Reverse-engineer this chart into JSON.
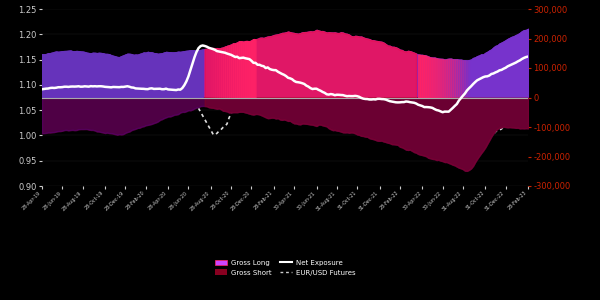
{
  "background_color": "#000000",
  "left_ylim": [
    0.9,
    1.25
  ],
  "right_ylim": [
    -300000,
    300000
  ],
  "left_yticks": [
    0.9,
    0.95,
    1.0,
    1.05,
    1.1,
    1.15,
    1.2,
    1.25
  ],
  "right_yticks": [
    -300000,
    -200000,
    -100000,
    0,
    100000,
    200000,
    300000
  ],
  "left_tick_color": "#cccccc",
  "right_tick_color": "#cc2200",
  "hline_color": "#aaaaaa",
  "hline_lw": 0.8,
  "net_exposure_color": "#ffffff",
  "net_exposure_lw": 1.8,
  "futures_color": "#dddddd",
  "futures_lw": 1.2,
  "xtick_labels": [
    "28-Apr-19",
    "28-Jun-19",
    "28-Aug-19",
    "28-Oct-19",
    "28-Dec-19",
    "28-Feb-20",
    "28-Apr-20",
    "28-Jun-20",
    "28-Aug-20",
    "28-Oct-20",
    "28-Dec-20",
    "28-Feb-21",
    "30-Apr-21",
    "30-Jun-21",
    "31-Aug-21",
    "31-Oct-21",
    "31-Dec-21",
    "28-Feb-22",
    "30-Apr-22",
    "30-Jun-22",
    "31-Aug-22",
    "31-Oct-22",
    "31-Dec-22",
    "28-Feb-23"
  ],
  "n_points": 240
}
